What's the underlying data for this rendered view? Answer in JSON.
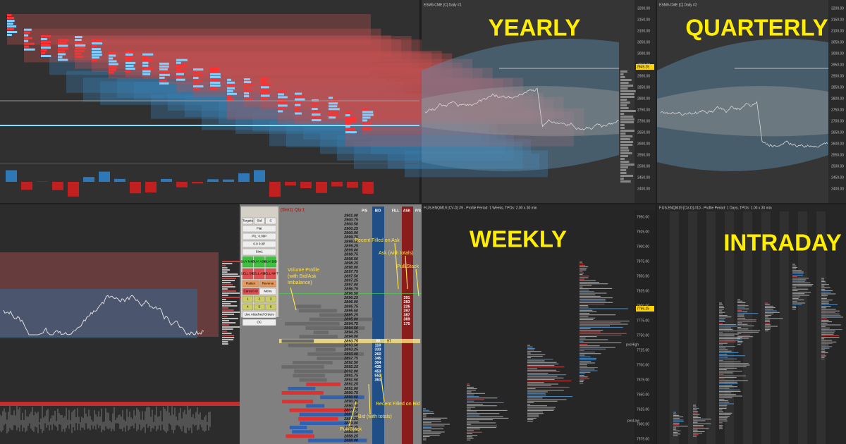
{
  "yearly": {
    "header": "ESM9-CME [C] Daily #1",
    "label": "YEARLY",
    "price_tag": "2949.25",
    "axis": [
      "3200.00",
      "3150.00",
      "3100.00",
      "3050.00",
      "3000.00",
      "2950.00",
      "2900.00",
      "2850.00",
      "2800.00",
      "2750.00",
      "2700.00",
      "2650.00",
      "2600.00",
      "2550.00",
      "2500.00",
      "2450.00",
      "2400.00"
    ]
  },
  "quarterly": {
    "header": "ESM9-CME [C] Daily #2",
    "label": "QUARTERLY",
    "axis": [
      "3200.00",
      "3150.00",
      "3100.00",
      "3050.00",
      "3000.00",
      "2950.00",
      "2900.00",
      "2850.00",
      "2800.00",
      "2750.00",
      "2700.00",
      "2650.00",
      "2600.00",
      "2550.00",
      "2500.00",
      "2450.00",
      "2400.00"
    ]
  },
  "weekly": {
    "header": "F.US.ENQM19 [CV-D] #9 - Profile Period: 1 Weeks, TPOs: 2.00 x 30 min",
    "label": "WEEKLY",
    "price_tag": "7796.25",
    "pvs_high": "pvsHigh",
    "pvs_low": "pvsLow",
    "axis": [
      "7950.00",
      "7925.00",
      "7900.00",
      "7875.00",
      "7850.00",
      "7825.00",
      "7800.00",
      "7775.00",
      "7750.00",
      "7725.00",
      "7700.00",
      "7675.00",
      "7650.00",
      "7625.00",
      "7600.00",
      "7575.00"
    ]
  },
  "intraday": {
    "header": "F.US.ENQM19 [CV-D] #10 - Profile Period: 1 Days, TPOs: 1.00 x 30 min",
    "label": "INTRADAY"
  },
  "dom": {
    "account": "(Sim1)",
    "qty": "Qty:1",
    "buttons": [
      [
        "Targets",
        "Std",
        "C"
      ],
      [
        "Flat"
      ],
      [
        "P/L: 0.00P"
      ],
      [
        "0.0 0.0P"
      ],
      [
        "Sim1"
      ],
      [
        "BUY MKT",
        "BUY ASK",
        "BUY BID"
      ],
      [
        "SELL BID",
        "SELL ASK",
        "SELL MKT"
      ],
      [
        "Flatten",
        "Reverse"
      ],
      [
        "Cancel All",
        "Menu"
      ],
      [
        "1",
        "2",
        "3"
      ],
      [
        "4",
        "5",
        "6"
      ],
      [
        "Use Attached Orders"
      ],
      [
        "OC"
      ]
    ],
    "headers": [
      "P/S",
      "BID",
      "FILL",
      "ASK",
      "P/S"
    ],
    "prices": [
      "2901.00",
      "2900.75",
      "2900.50",
      "2900.25",
      "2900.00",
      "2899.75",
      "2899.50",
      "2899.25",
      "2899.00",
      "2898.75",
      "2898.50",
      "2898.25",
      "2898.00",
      "2897.75",
      "2897.50",
      "2897.25",
      "2897.00",
      "2896.75",
      "2896.50",
      "2896.25",
      "2896.00",
      "2895.75",
      "2895.50",
      "2895.25",
      "2895.00",
      "2894.75",
      "2894.50",
      "2894.25",
      "2894.00",
      "2893.75",
      "2893.50",
      "2893.25",
      "2893.00",
      "2892.75",
      "2892.50",
      "2892.25",
      "2892.00",
      "2891.75",
      "2891.50",
      "2891.25",
      "2891.00",
      "2890.75",
      "2890.50",
      "2890.25",
      "2890.00",
      "2889.75",
      "2889.50",
      "2889.25",
      "2889.00",
      "2888.75",
      "2888.50",
      "2888.25",
      "2888.00"
    ],
    "asks": [
      "391",
      "283",
      "226",
      "397",
      "387",
      "369",
      "175"
    ],
    "bids": [
      "90",
      "110",
      "333",
      "260",
      "345",
      "304",
      "435",
      "453",
      "552",
      "361"
    ],
    "fill": "97"
  },
  "annotations": [
    "Recent Filled on Ask",
    "Ask (with totals)",
    "Pull/Stack",
    "Volume Profile",
    "(with Bid/Ask",
    "Imbalance)",
    "Recent Filled on Bid",
    "Bid (with totals)",
    "Pull/Stack"
  ]
}
